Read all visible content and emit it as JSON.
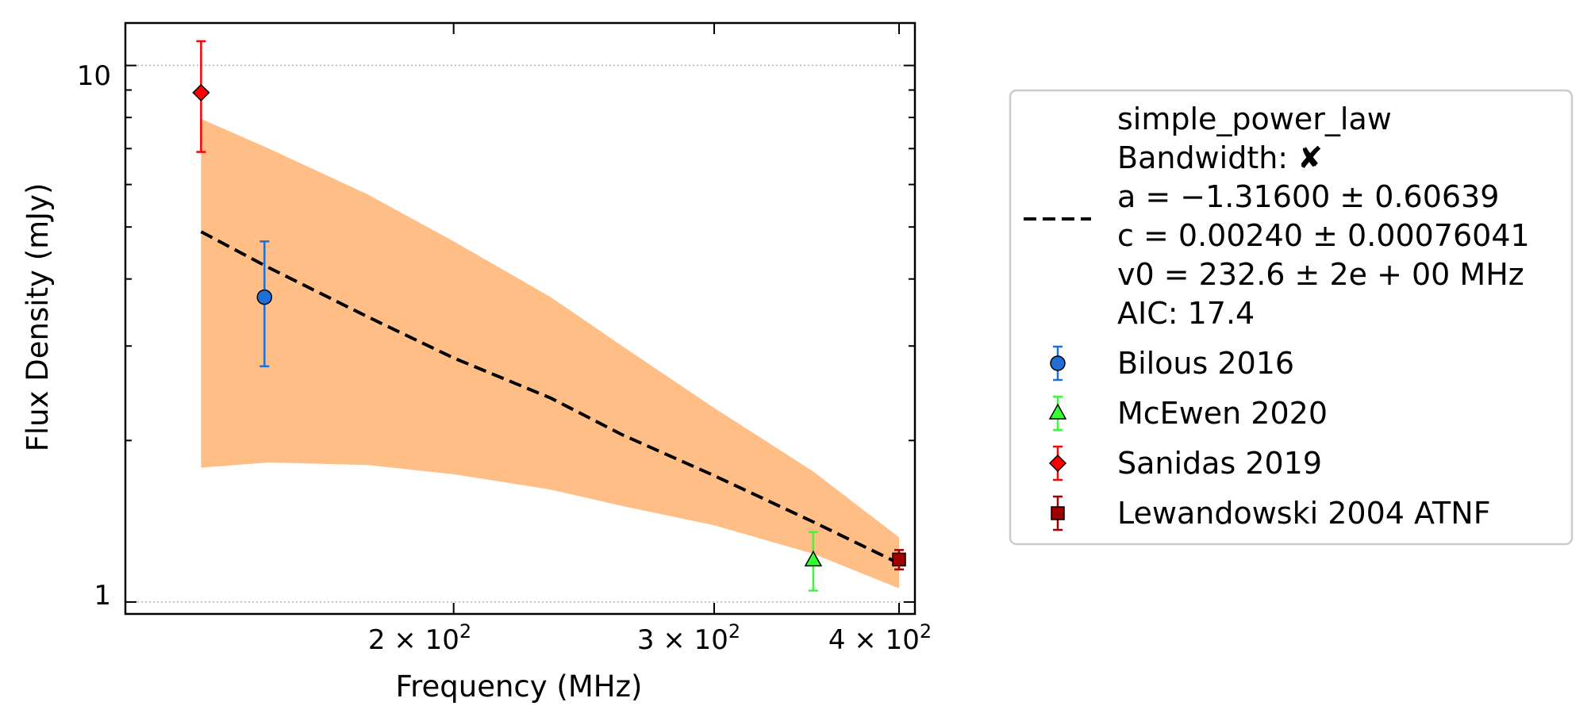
{
  "chart_data": {
    "type": "scatter",
    "xlabel": "Frequency (MHz)",
    "ylabel": "Flux Density (mJy)",
    "x_scale": "log",
    "y_scale": "log",
    "xlim": [
      120,
      410
    ],
    "ylim": [
      0.95,
      12.0
    ],
    "x_ticks": [
      {
        "value": 200,
        "label_base": "2 × 10",
        "label_exp": "2"
      },
      {
        "value": 300,
        "label_base": "3 × 10",
        "label_exp": "2"
      },
      {
        "value": 400,
        "label_base": "4 × 10",
        "label_exp": "2"
      }
    ],
    "y_ticks": [
      {
        "value": 1,
        "label": "1"
      },
      {
        "value": 10,
        "label": "10"
      }
    ],
    "y_grid": true,
    "legend_position": "outside right",
    "fit": {
      "name": "simple_power_law",
      "color": "#000000",
      "band_color": "#ffbe85",
      "x": [
        135,
        150,
        175,
        200,
        232.6,
        260,
        300,
        350,
        400
      ],
      "y": [
        4.9,
        4.2,
        3.4,
        2.85,
        2.4,
        2.05,
        1.72,
        1.41,
        1.18
      ],
      "band_lower": [
        1.78,
        1.82,
        1.8,
        1.73,
        1.62,
        1.51,
        1.39,
        1.23,
        1.06
      ],
      "band_upper": [
        7.95,
        7.0,
        5.75,
        4.7,
        3.7,
        3.0,
        2.3,
        1.75,
        1.32
      ],
      "legend_lines": [
        "simple_power_law",
        "Bandwidth: ✘",
        "a = −1.31600 ± 0.60639",
        "c = 0.00240 ± 0.00076041",
        "v0 = 232.6 ± 2e + 00 MHz",
        "AIC: 17.4"
      ]
    },
    "series": [
      {
        "name": "Bilous 2016",
        "marker": "circle",
        "color": "#1f6fd6",
        "points": [
          {
            "x": 149,
            "y": 3.7,
            "ylow": 2.75,
            "yhigh": 4.7
          }
        ]
      },
      {
        "name": "McEwen 2020",
        "marker": "triangle",
        "color": "#33ff33",
        "points": [
          {
            "x": 350,
            "y": 1.2,
            "ylow": 1.05,
            "yhigh": 1.35
          }
        ]
      },
      {
        "name": "Sanidas 2019",
        "marker": "diamond",
        "color": "#ff0000",
        "points": [
          {
            "x": 135,
            "y": 8.9,
            "ylow": 6.9,
            "yhigh": 11.1
          }
        ]
      },
      {
        "name": "Lewandowski 2004 ATNF",
        "marker": "square",
        "color": "#a00000",
        "points": [
          {
            "x": 400,
            "y": 1.2,
            "ylow": 1.15,
            "yhigh": 1.25
          }
        ]
      }
    ]
  }
}
